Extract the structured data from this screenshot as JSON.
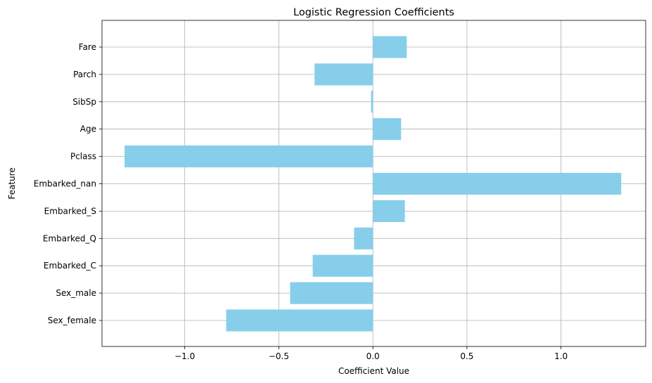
{
  "chart_data": {
    "type": "bar",
    "orientation": "horizontal",
    "title": "Logistic Regression Coefficients",
    "xlabel": "Coefficient Value",
    "ylabel": "Feature",
    "categories": [
      "Sex_female",
      "Sex_male",
      "Embarked_C",
      "Embarked_Q",
      "Embarked_S",
      "Embarked_nan",
      "Pclass",
      "Age",
      "SibSp",
      "Parch",
      "Fare"
    ],
    "values": [
      -0.78,
      -0.44,
      -0.32,
      -0.1,
      0.17,
      1.32,
      -1.32,
      0.15,
      -0.01,
      -0.31,
      0.18
    ],
    "xlim": [
      -1.44,
      1.45
    ],
    "xticks": [
      -1.0,
      -0.5,
      0.0,
      0.5,
      1.0
    ],
    "xtick_labels": [
      "−1.0",
      "−0.5",
      "0.0",
      "0.5",
      "1.0"
    ],
    "grid": true,
    "bar_color": "#87ceeb"
  }
}
